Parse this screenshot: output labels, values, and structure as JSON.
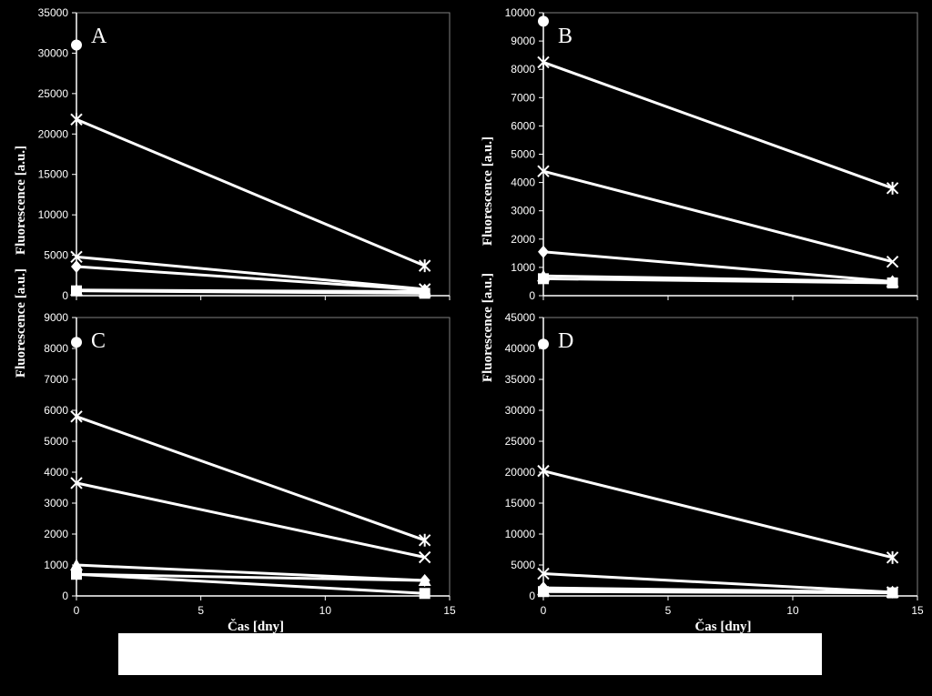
{
  "figure": {
    "ylabel": "Fluorescence [a.u.]",
    "xlabel": "Čas [dny]"
  },
  "colors": {
    "background": "#000000",
    "foreground": "#ffffff"
  },
  "chart_data": [
    {
      "panel": "A",
      "type": "line",
      "x": [
        0,
        14
      ],
      "xlim": [
        0,
        15
      ],
      "ylim": [
        0,
        35000
      ],
      "yticks": [
        0,
        5000,
        10000,
        15000,
        20000,
        25000,
        30000,
        35000
      ],
      "xlabel": "",
      "ylabel": "Fluorescence [a.u.]",
      "series": [
        {
          "marker": "circle",
          "values": [
            31000,
            null
          ]
        },
        {
          "marker": "asterisk",
          "values": [
            21800,
            3700
          ]
        },
        {
          "marker": "cross",
          "values": [
            4800,
            800
          ]
        },
        {
          "marker": "diamond",
          "values": [
            3600,
            700
          ]
        },
        {
          "marker": "triangle",
          "values": [
            700,
            500
          ]
        },
        {
          "marker": "square",
          "values": [
            600,
            300
          ]
        }
      ]
    },
    {
      "panel": "B",
      "type": "line",
      "x": [
        0,
        14
      ],
      "xlim": [
        0,
        15
      ],
      "ylim": [
        0,
        10000
      ],
      "yticks": [
        0,
        1000,
        2000,
        3000,
        4000,
        5000,
        6000,
        7000,
        8000,
        9000,
        10000
      ],
      "xlabel": "",
      "ylabel": "Fluorescence [a.u.]",
      "series": [
        {
          "marker": "circle",
          "values": [
            9700,
            null
          ]
        },
        {
          "marker": "asterisk",
          "values": [
            8250,
            3800
          ]
        },
        {
          "marker": "cross",
          "values": [
            4400,
            1200
          ]
        },
        {
          "marker": "diamond",
          "values": [
            1550,
            500
          ]
        },
        {
          "marker": "triangle",
          "values": [
            700,
            500
          ]
        },
        {
          "marker": "square",
          "values": [
            600,
            450
          ]
        }
      ]
    },
    {
      "panel": "C",
      "type": "line",
      "x": [
        0,
        14
      ],
      "xlim": [
        0,
        15
      ],
      "ylim": [
        0,
        9000
      ],
      "yticks": [
        0,
        1000,
        2000,
        3000,
        4000,
        5000,
        6000,
        7000,
        8000,
        9000
      ],
      "xlabel": "Čas [dny]",
      "ylabel": "Fluorescence [a.u.]",
      "xticks": [
        0,
        5,
        10,
        15
      ],
      "series": [
        {
          "marker": "circle",
          "values": [
            8200,
            null
          ]
        },
        {
          "marker": "asterisk",
          "values": [
            5800,
            1800
          ]
        },
        {
          "marker": "cross",
          "values": [
            3650,
            1250
          ]
        },
        {
          "marker": "triangle",
          "values": [
            1000,
            500
          ]
        },
        {
          "marker": "diamond",
          "values": [
            700,
            500
          ]
        },
        {
          "marker": "square",
          "values": [
            700,
            80
          ]
        }
      ]
    },
    {
      "panel": "D",
      "type": "line",
      "x": [
        0,
        14
      ],
      "xlim": [
        0,
        15
      ],
      "ylim": [
        0,
        45000
      ],
      "yticks": [
        0,
        5000,
        10000,
        15000,
        20000,
        25000,
        30000,
        35000,
        40000,
        45000
      ],
      "xlabel": "Čas [dny]",
      "ylabel": "Fluorescence [a.u.]",
      "xticks": [
        0,
        5,
        10,
        15
      ],
      "series": [
        {
          "marker": "circle",
          "values": [
            40700,
            null
          ]
        },
        {
          "marker": "asterisk",
          "values": [
            20200,
            6200
          ]
        },
        {
          "marker": "cross",
          "values": [
            3600,
            600
          ]
        },
        {
          "marker": "diamond",
          "values": [
            1300,
            600
          ]
        },
        {
          "marker": "triangle",
          "values": [
            1000,
            600
          ]
        },
        {
          "marker": "square",
          "values": [
            700,
            500
          ]
        }
      ]
    }
  ]
}
